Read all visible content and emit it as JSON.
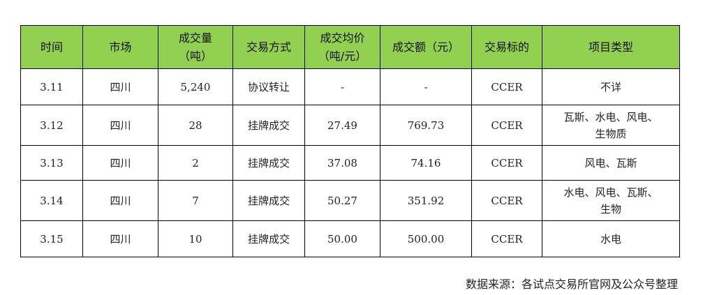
{
  "table": {
    "headers": [
      "时间",
      "市场",
      "成交量\n（吨）",
      "交易方式",
      "成交均价\n（吨/元）",
      "成交额（元）",
      "交易标的",
      "项目类型"
    ],
    "rows": [
      [
        "3.11",
        "四川",
        "5,240",
        "协议转让",
        "-",
        "-",
        "CCER",
        "不详"
      ],
      [
        "3.12",
        "四川",
        "28",
        "挂牌成交",
        "27.49",
        "769.73",
        "CCER",
        "瓦斯、水电、风电、\n生物质"
      ],
      [
        "3.13",
        "四川",
        "2",
        "挂牌成交",
        "37.08",
        "74.16",
        "CCER",
        "风电、瓦斯"
      ],
      [
        "3.14",
        "四川",
        "7",
        "挂牌成交",
        "50.27",
        "351.92",
        "CCER",
        "水电、风电、瓦斯、\n生物"
      ],
      [
        "3.15",
        "四川",
        "10",
        "挂牌成交",
        "50.00",
        "500.00",
        "CCER",
        "水电"
      ]
    ]
  },
  "source": "数据来源：各试点交易所官网及公众号整理",
  "colors": {
    "header_bg": "#92d050"
  }
}
